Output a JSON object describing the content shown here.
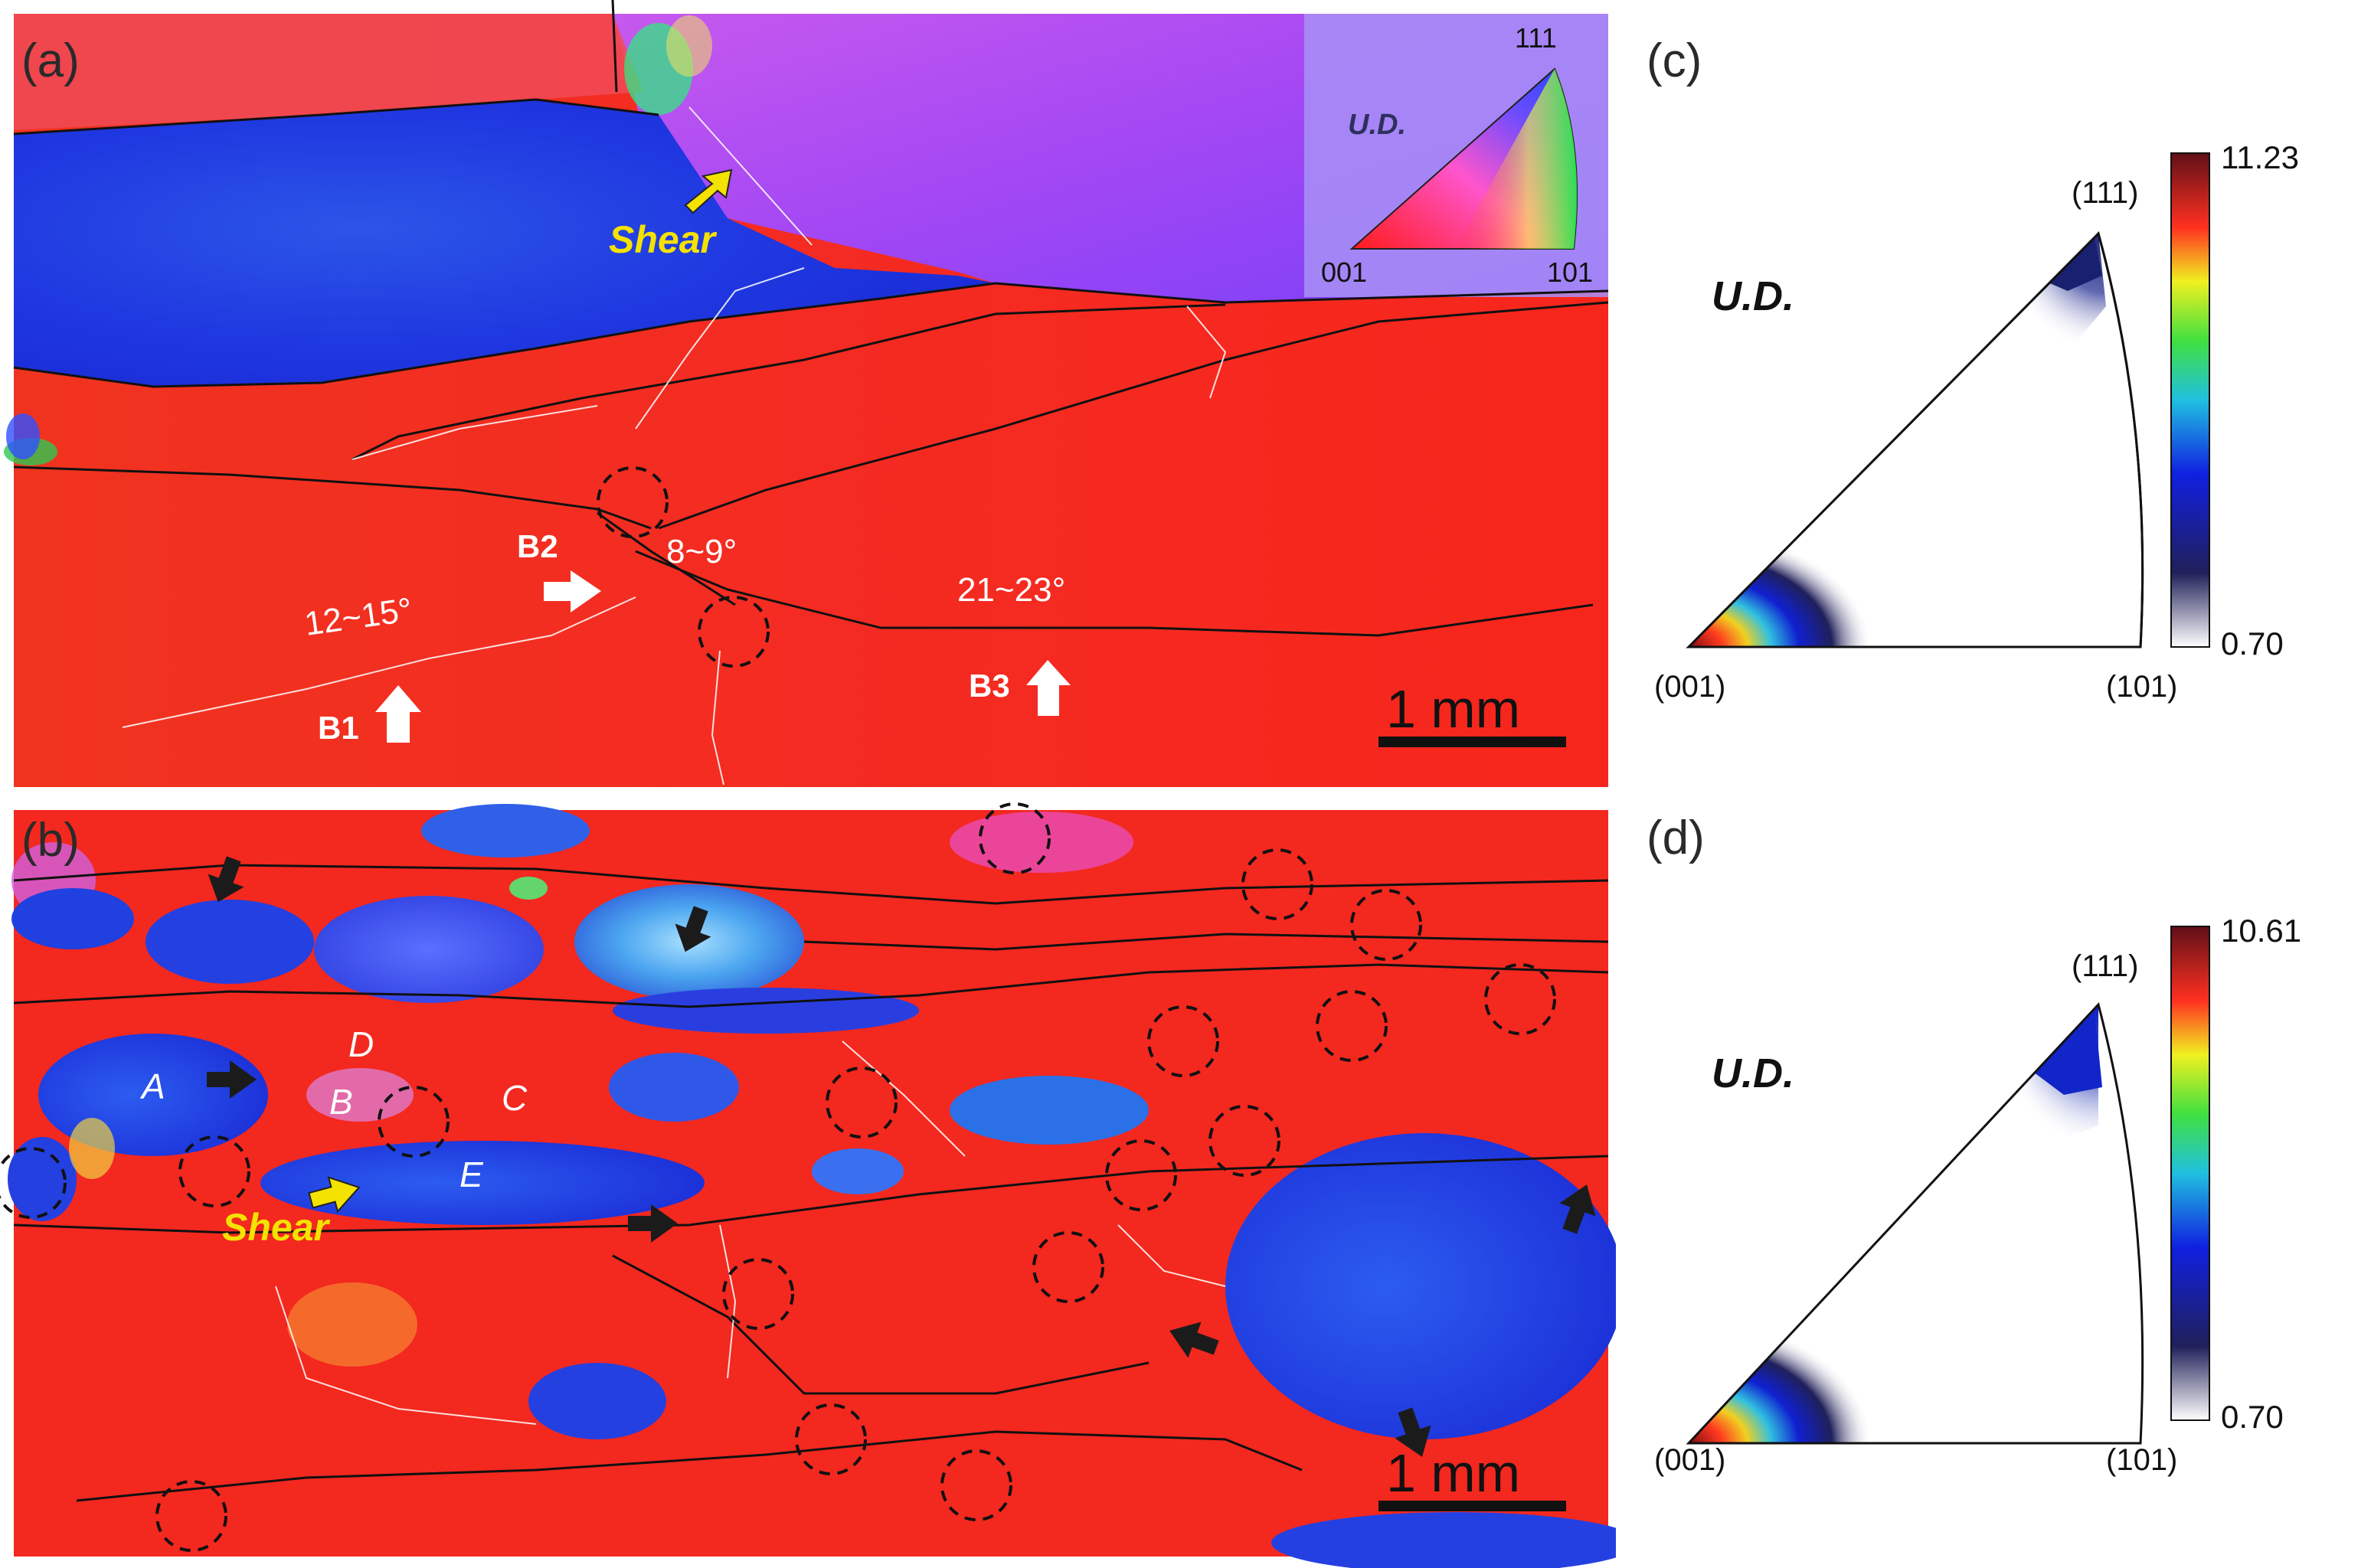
{
  "panels": {
    "a": {
      "label": "(a)",
      "shear_label": "Shear",
      "boundaries": [
        {
          "id": "B1",
          "label": "B1",
          "angle": "12~15°"
        },
        {
          "id": "B2",
          "label": "B2",
          "angle": "8~9°"
        },
        {
          "id": "B3",
          "label": "B3",
          "angle": "21~23°"
        }
      ],
      "scale_bar": "1 mm",
      "ipf_key": {
        "direction": "U.D.",
        "v001": "001",
        "v101": "101",
        "v111": "111"
      }
    },
    "b": {
      "label": "(b)",
      "shear_label": "Shear",
      "grains": [
        "A",
        "B",
        "C",
        "D",
        "E"
      ],
      "scale_bar": "1 mm"
    },
    "c": {
      "label": "(c)",
      "direction": "U.D.",
      "v001": "(001)",
      "v101": "(101)",
      "v111": "(111)",
      "colorbar_max": "11.23",
      "colorbar_min": "0.70"
    },
    "d": {
      "label": "(d)",
      "direction": "U.D.",
      "v001": "(001)",
      "v101": "(101)",
      "v111": "(111)",
      "colorbar_max": "10.61",
      "colorbar_min": "0.70"
    }
  },
  "colors": {
    "grain_red": "#f5261f",
    "grain_blue": "#1a2ee0",
    "grain_violet": "#a547f0",
    "shear_yellow": "#f4e200",
    "arrow_black": "#1b1b1b"
  }
}
